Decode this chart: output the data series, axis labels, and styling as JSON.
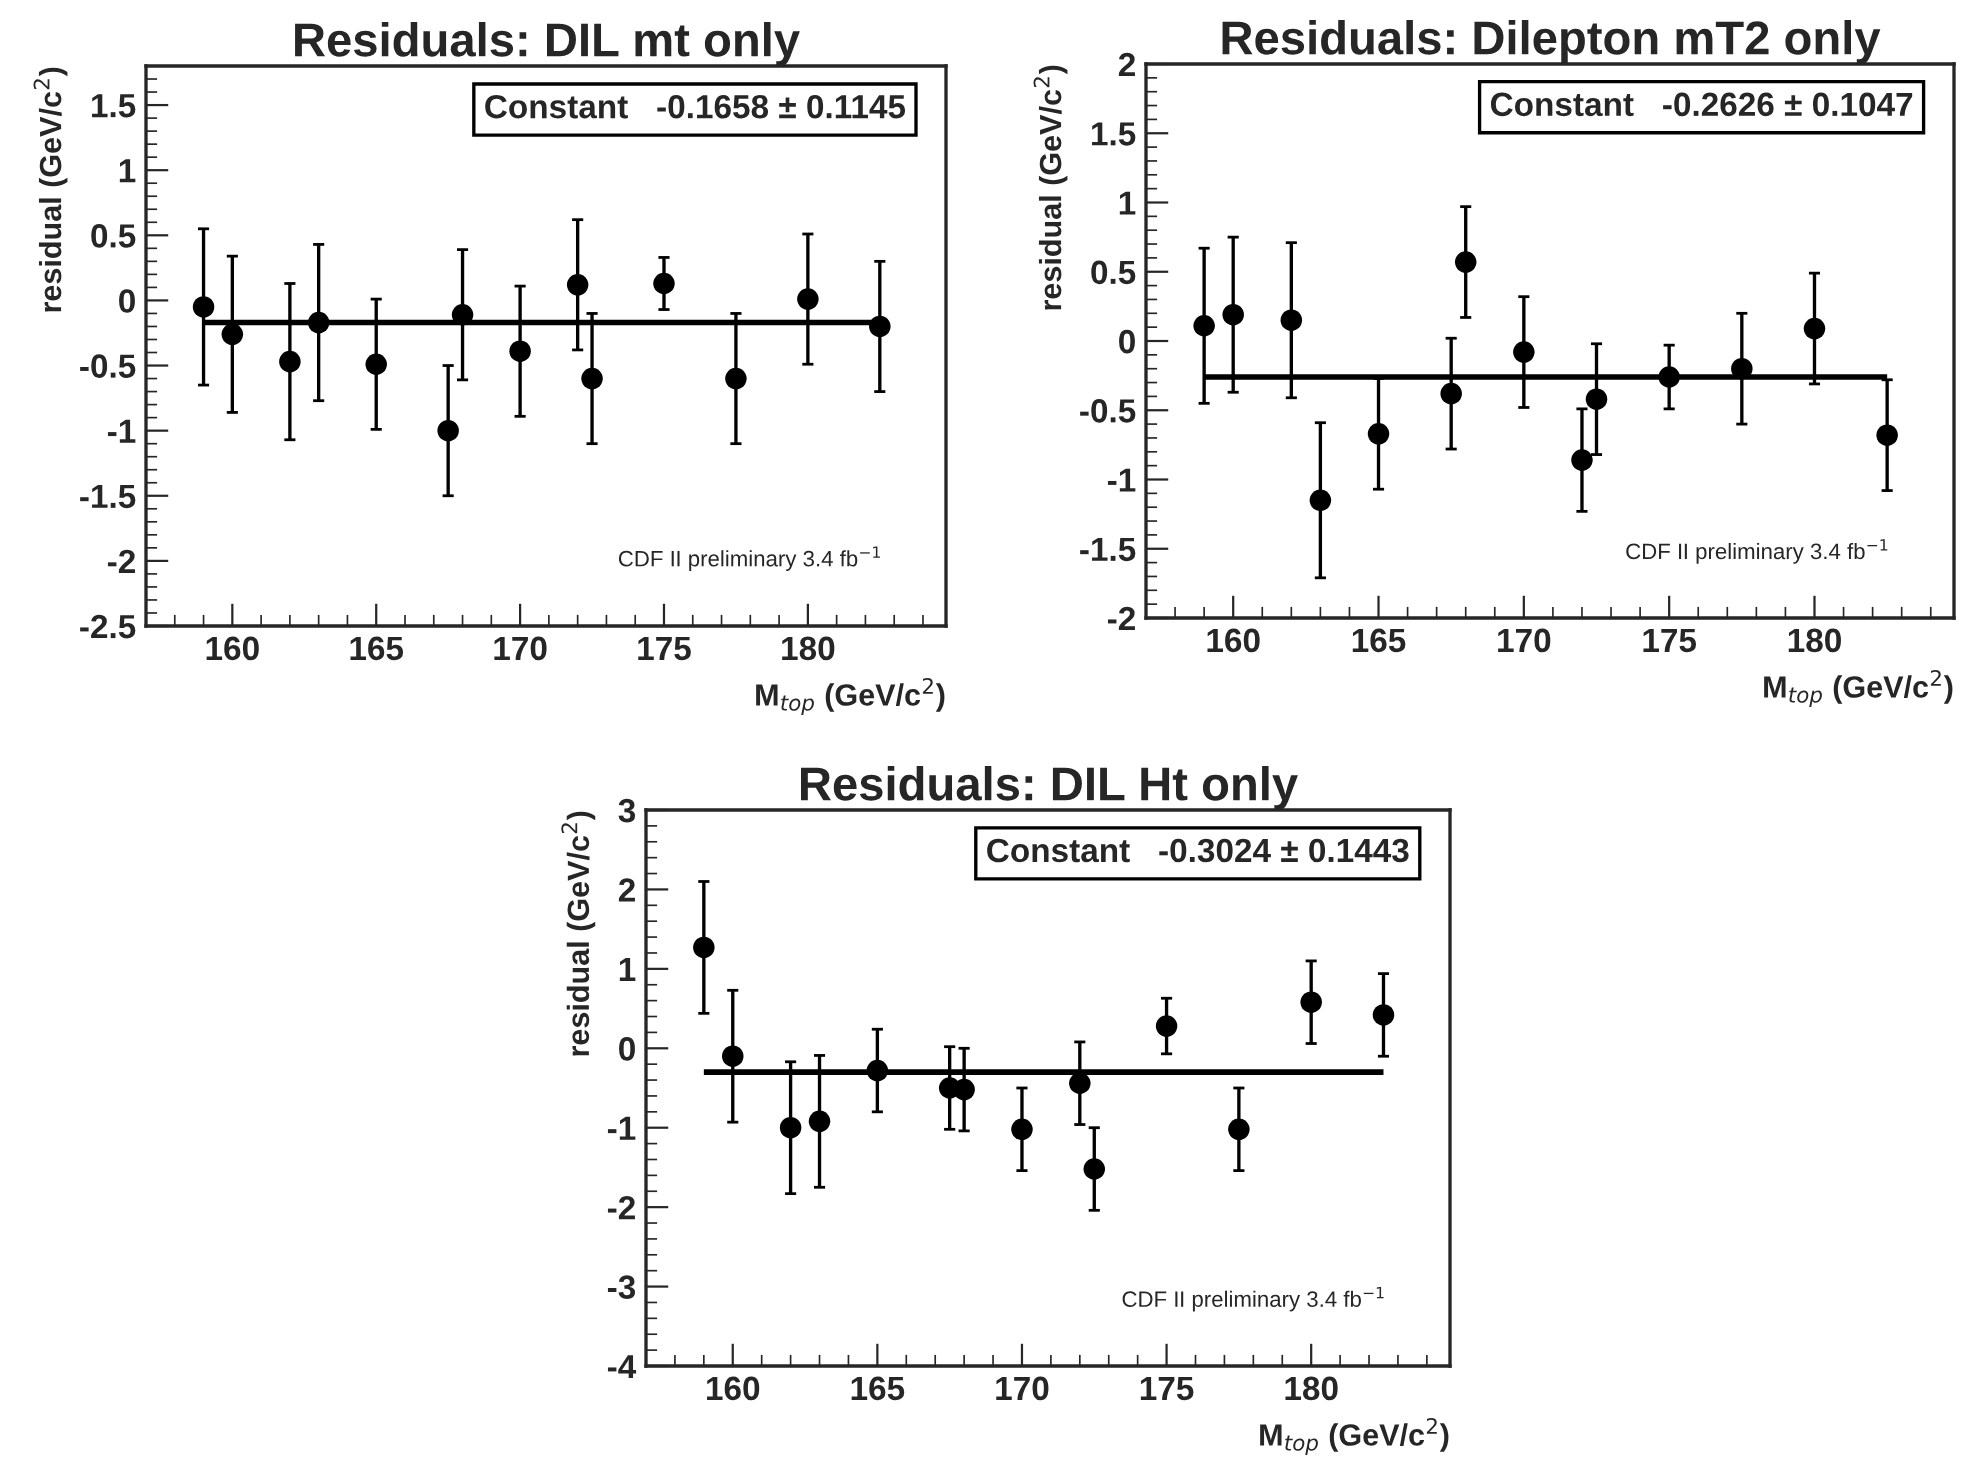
{
  "chart_data": [
    {
      "type": "scatter",
      "title": "Residuals: DIL mt only",
      "xlabel": "M$_{top}$ (GeV/c$^{2}$)",
      "ylabel": "residual (GeV/c$^{2}$)",
      "x": [
        159,
        160,
        162,
        163,
        165,
        167.5,
        168,
        170,
        172,
        172.5,
        175,
        177.5,
        180,
        182.5
      ],
      "series": [
        {
          "color": "#000000",
          "marker": "circle",
          "values": [
            -0.05,
            -0.26,
            -0.47,
            -0.17,
            -0.49,
            -1.0,
            -0.11,
            -0.39,
            0.12,
            -0.6,
            0.13,
            -0.6,
            0.01,
            -0.2
          ],
          "errors": [
            0.6,
            0.6,
            0.6,
            0.6,
            0.5,
            0.5,
            0.5,
            0.5,
            0.5,
            0.5,
            0.2,
            0.5,
            0.5,
            0.5
          ]
        },
        {
          "type": "line",
          "color": "#000000",
          "line_style": "solid",
          "values": [
            -0.17,
            -0.17,
            -0.17,
            -0.17,
            -0.17,
            -0.17,
            -0.17,
            -0.17,
            -0.17,
            -0.17,
            -0.17,
            -0.17,
            -0.17,
            -0.17
          ]
        }
      ],
      "grid": false,
      "xlim": [
        157,
        184.8
      ],
      "ylim": [
        -2.5,
        1.8
      ],
      "xticks": [
        160,
        165,
        170,
        175,
        180
      ],
      "yticks": [
        -2.5,
        -2,
        -1.5,
        -1,
        -0.5,
        0,
        0.5,
        1,
        1.5
      ],
      "annotations": [
        "Constant   -0.1658 ± 0.1145",
        "CDF II preliminary 3.4 fb$^{−1}$"
      ]
    },
    {
      "type": "scatter",
      "title": "Residuals: Dilepton mT2 only",
      "xlabel": "M$_{top}$ (GeV/c$^{2}$)",
      "ylabel": "residual (GeV/c$^{2}$)",
      "x": [
        159,
        160,
        162,
        163,
        165,
        167.5,
        168,
        170,
        172,
        172.5,
        175,
        177.5,
        180,
        182.5
      ],
      "series": [
        {
          "color": "#000000",
          "marker": "circle",
          "values": [
            0.11,
            0.19,
            0.15,
            -1.15,
            -0.67,
            -0.38,
            0.57,
            -0.08,
            -0.86,
            -0.42,
            -0.26,
            -0.2,
            0.09,
            -0.68
          ],
          "errors": [
            0.56,
            0.56,
            0.56,
            0.56,
            0.4,
            0.4,
            0.4,
            0.4,
            0.37,
            0.4,
            0.23,
            0.4,
            0.4,
            0.4
          ]
        },
        {
          "type": "line",
          "color": "#000000",
          "line_style": "solid",
          "values": [
            -0.26,
            -0.26,
            -0.26,
            -0.26,
            -0.26,
            -0.26,
            -0.26,
            -0.26,
            -0.26,
            -0.26,
            -0.26,
            -0.26,
            -0.26,
            -0.26
          ]
        }
      ],
      "grid": false,
      "xlim": [
        157,
        184.8
      ],
      "ylim": [
        -2,
        2
      ],
      "xticks": [
        160,
        165,
        170,
        175,
        180
      ],
      "yticks": [
        -2,
        -1.5,
        -1,
        -0.5,
        0,
        0.5,
        1,
        1.5,
        2
      ],
      "annotations": [
        "Constant   -0.2626 ± 0.1047",
        "CDF II preliminary 3.4 fb$^{−1}$"
      ]
    },
    {
      "type": "scatter",
      "title": "Residuals: DIL Ht only",
      "xlabel": "M$_{top}$ (GeV/c$^{2}$)",
      "ylabel": "residual (GeV/c$^{2}$)",
      "x": [
        159,
        160,
        162,
        163,
        165,
        167.5,
        168,
        170,
        172,
        172.5,
        175,
        177.5,
        180,
        182.5
      ],
      "series": [
        {
          "color": "#000000",
          "marker": "circle",
          "values": [
            1.27,
            -0.1,
            -1.0,
            -0.92,
            -0.28,
            -0.5,
            -0.52,
            -1.02,
            -0.44,
            -1.52,
            0.28,
            -1.02,
            0.58,
            0.42
          ],
          "errors": [
            0.83,
            0.83,
            0.83,
            0.83,
            0.52,
            0.52,
            0.52,
            0.52,
            0.52,
            0.52,
            0.35,
            0.52,
            0.52,
            0.52
          ]
        },
        {
          "type": "line",
          "color": "#000000",
          "line_style": "solid",
          "values": [
            -0.3,
            -0.3,
            -0.3,
            -0.3,
            -0.3,
            -0.3,
            -0.3,
            -0.3,
            -0.3,
            -0.3,
            -0.3,
            -0.3,
            -0.3,
            -0.3
          ]
        }
      ],
      "grid": false,
      "xlim": [
        157,
        184.8
      ],
      "ylim": [
        -4,
        3
      ],
      "xticks": [
        160,
        165,
        170,
        175,
        180
      ],
      "yticks": [
        -4,
        -3,
        -2,
        -1,
        0,
        1,
        2,
        3
      ],
      "annotations": [
        "Constant   -0.3024 ± 0.1443",
        "CDF II preliminary 3.4 fb$^{−1}$"
      ]
    }
  ]
}
